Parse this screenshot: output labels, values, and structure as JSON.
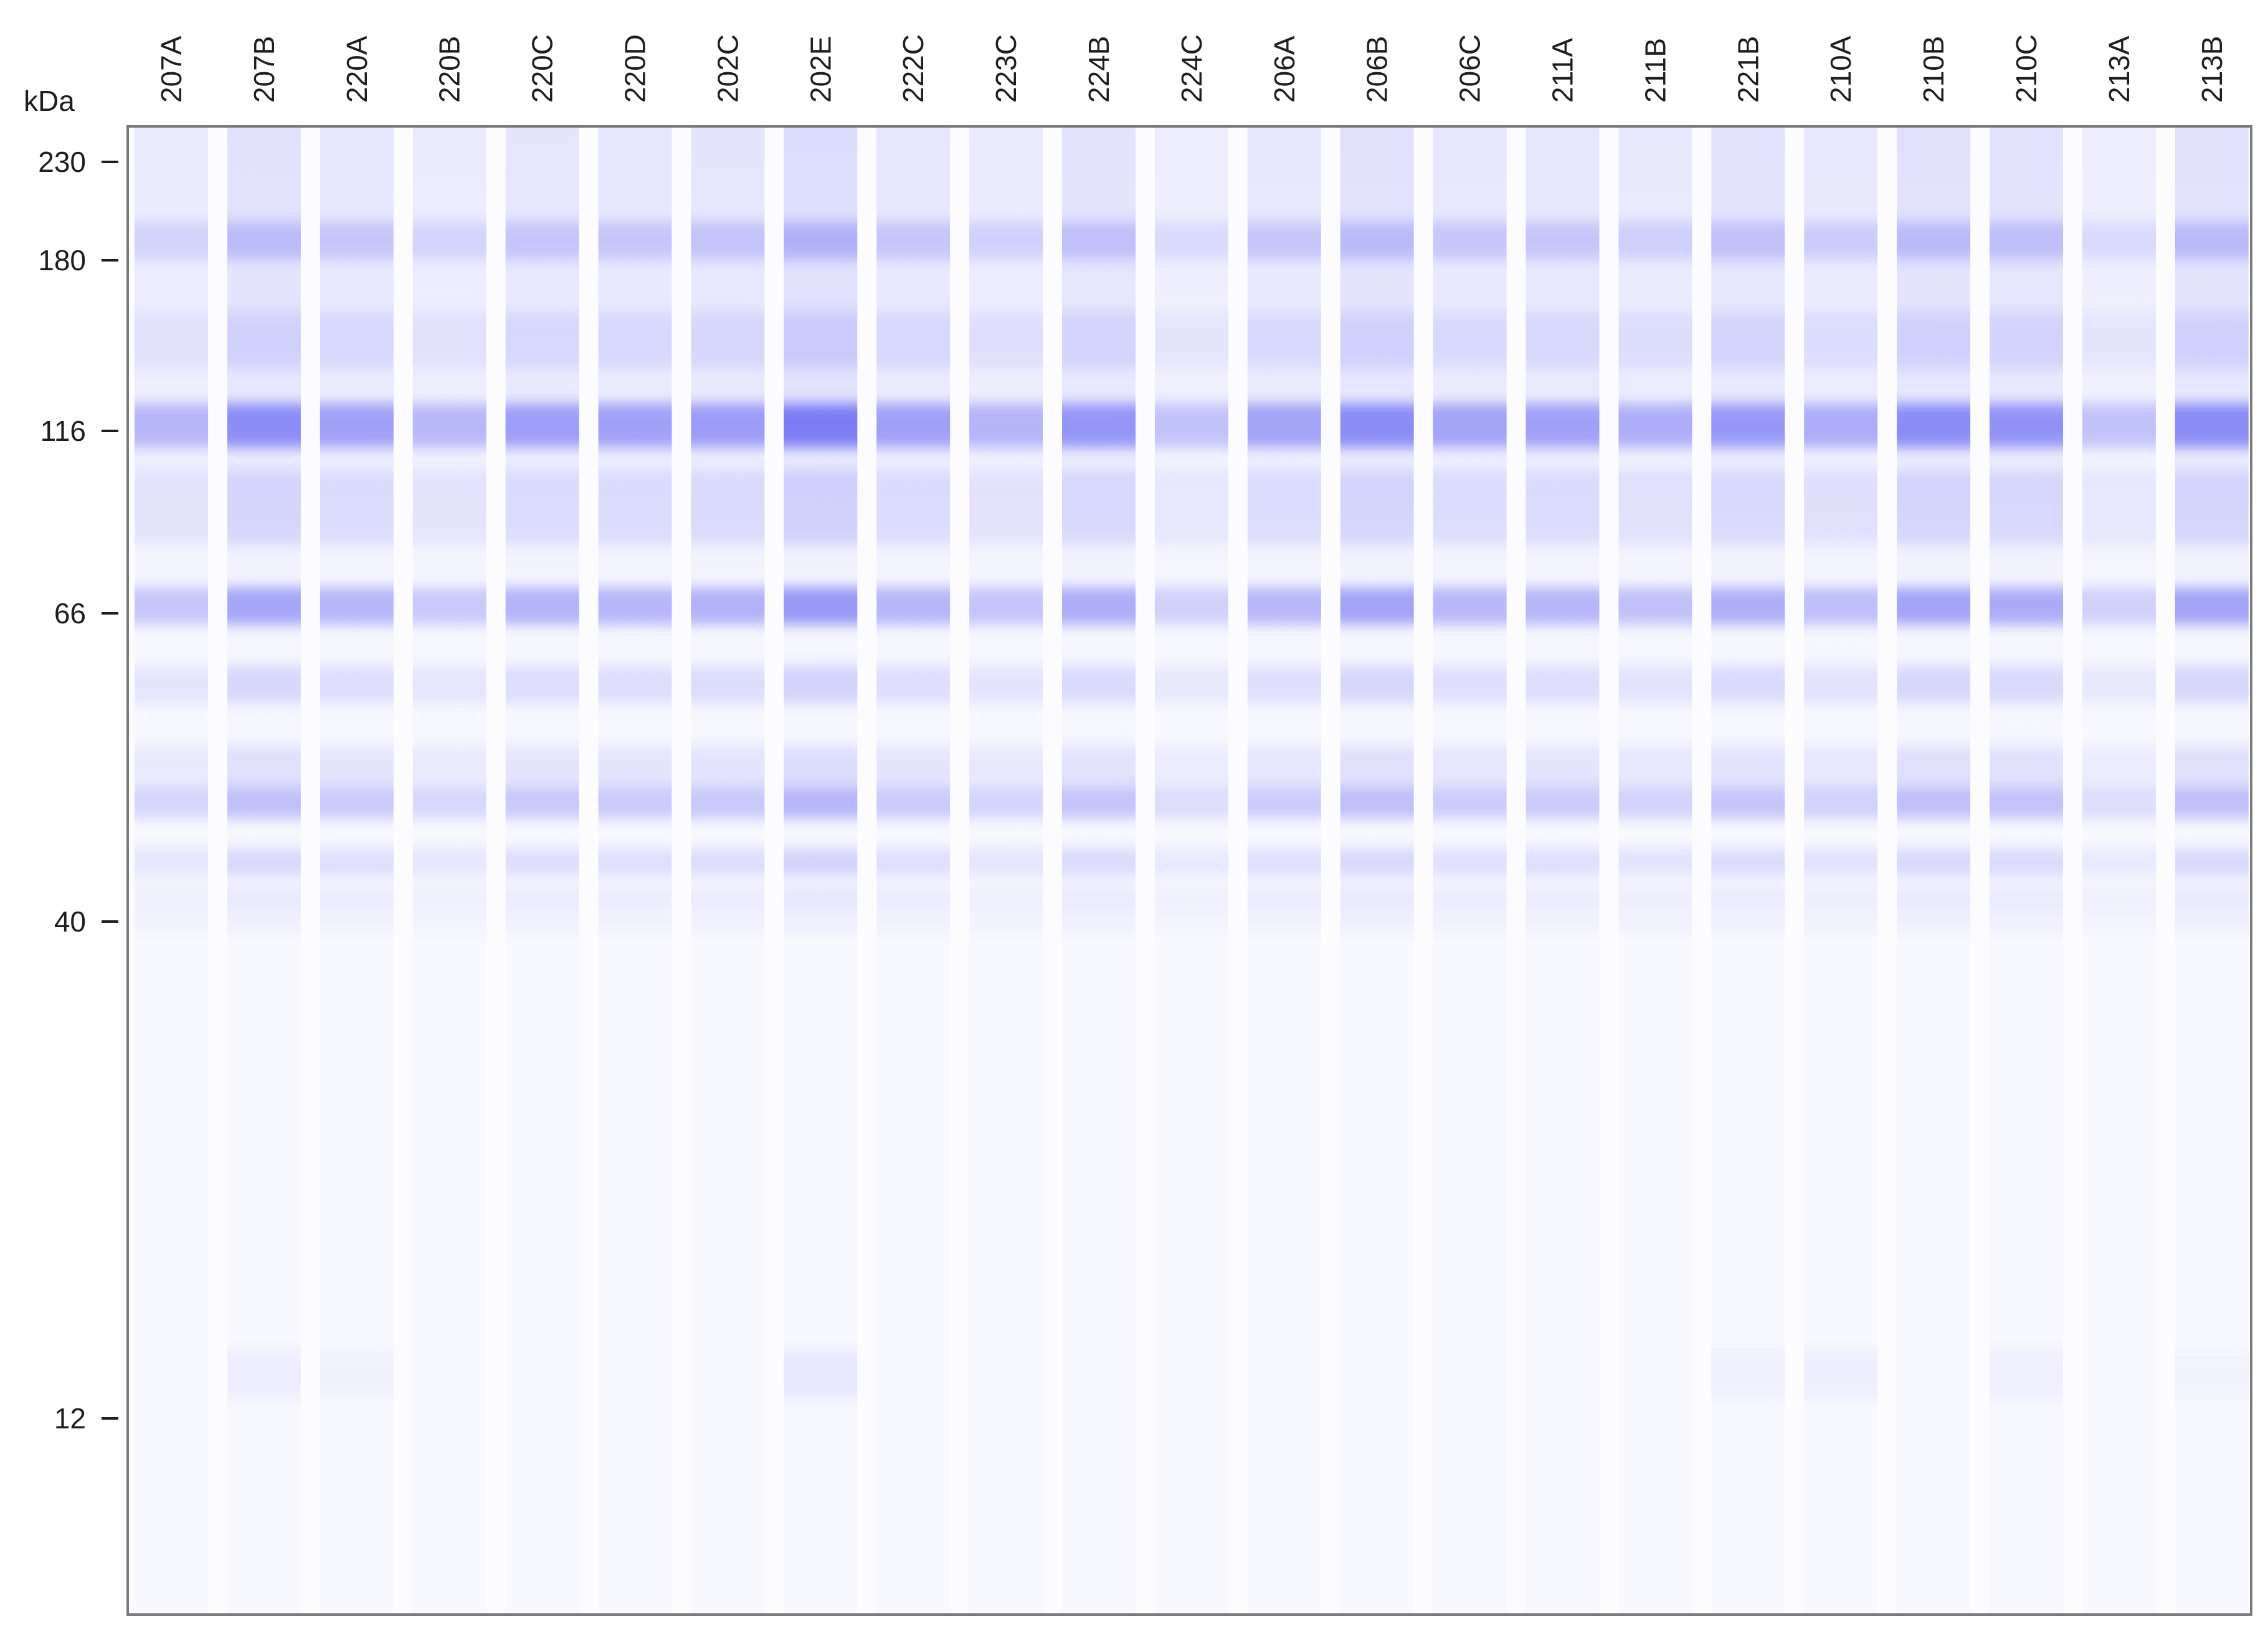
{
  "gel": {
    "unit_label": "kDa",
    "band_color": "#5a5af2",
    "frame_color": "#7a7a7a",
    "background_color": "#fcfcff",
    "markers": [
      {
        "label": "230",
        "kda": 230
      },
      {
        "label": "180",
        "kda": 180
      },
      {
        "label": "116",
        "kda": 116
      },
      {
        "label": "66",
        "kda": 66
      },
      {
        "label": "40",
        "kda": 40
      },
      {
        "label": "12",
        "kda": 12
      }
    ],
    "lanes": [
      {
        "label": "207A",
        "intensity": 0.5,
        "low_bands": 0.0
      },
      {
        "label": "207B",
        "intensity": 0.85,
        "low_bands": 0.35
      },
      {
        "label": "220A",
        "intensity": 0.68,
        "low_bands": 0.2
      },
      {
        "label": "220B",
        "intensity": 0.48,
        "low_bands": 0.0
      },
      {
        "label": "220C",
        "intensity": 0.7,
        "low_bands": 0.0
      },
      {
        "label": "220D",
        "intensity": 0.68,
        "low_bands": 0.0
      },
      {
        "label": "202C",
        "intensity": 0.72,
        "low_bands": 0.0
      },
      {
        "label": "202E",
        "intensity": 1.0,
        "low_bands": 0.55
      },
      {
        "label": "222C",
        "intensity": 0.68,
        "low_bands": 0.0
      },
      {
        "label": "223C",
        "intensity": 0.52,
        "low_bands": 0.0
      },
      {
        "label": "224B",
        "intensity": 0.78,
        "low_bands": 0.0
      },
      {
        "label": "224C",
        "intensity": 0.4,
        "low_bands": 0.0
      },
      {
        "label": "206A",
        "intensity": 0.66,
        "low_bands": 0.0
      },
      {
        "label": "206B",
        "intensity": 0.86,
        "low_bands": 0.0
      },
      {
        "label": "206C",
        "intensity": 0.66,
        "low_bands": 0.0
      },
      {
        "label": "211A",
        "intensity": 0.68,
        "low_bands": 0.0
      },
      {
        "label": "211B",
        "intensity": 0.56,
        "low_bands": 0.0
      },
      {
        "label": "221B",
        "intensity": 0.76,
        "low_bands": 0.25
      },
      {
        "label": "210A",
        "intensity": 0.58,
        "low_bands": 0.3
      },
      {
        "label": "210B",
        "intensity": 0.86,
        "low_bands": 0.0
      },
      {
        "label": "210C",
        "intensity": 0.8,
        "low_bands": 0.28
      },
      {
        "label": "213A",
        "intensity": 0.4,
        "low_bands": 0.0
      },
      {
        "label": "213B",
        "intensity": 0.86,
        "low_bands": 0.15
      }
    ]
  }
}
